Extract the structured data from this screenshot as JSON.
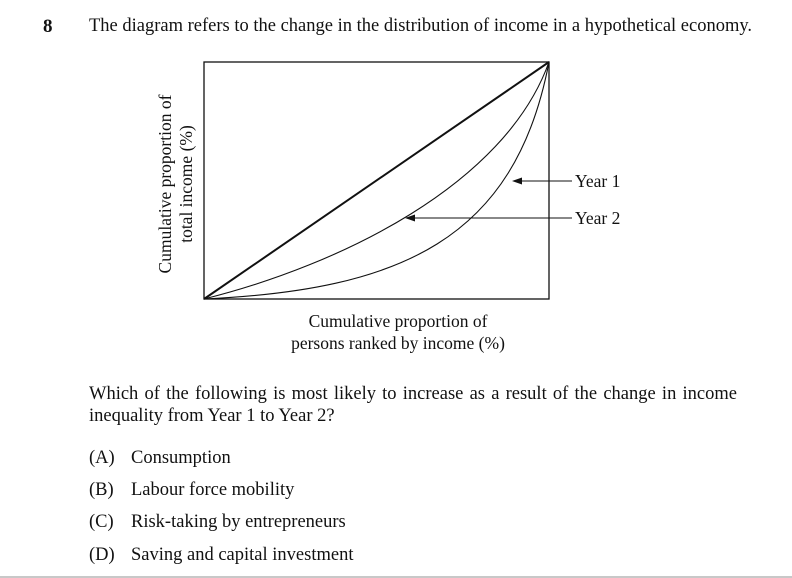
{
  "question": {
    "number": "8",
    "stem": "The diagram refers to the change in the distribution of income in a hypothetical economy.",
    "prompt": "Which of the following is most likely to increase as a result of the change in income inequality from Year 1 to Year 2?",
    "options": [
      {
        "letter": "(A)",
        "text": "Consumption"
      },
      {
        "letter": "(B)",
        "text": "Labour force mobility"
      },
      {
        "letter": "(C)",
        "text": "Risk-taking by entrepreneurs"
      },
      {
        "letter": "(D)",
        "text": "Saving and capital investment"
      }
    ]
  },
  "diagram": {
    "ylabel_line1": "Cumulative proportion of",
    "ylabel_line2": "total income (%)",
    "xlabel_line1": "Cumulative proportion of",
    "xlabel_line2": "persons ranked by income (%)",
    "curve_labels": [
      "Year 1",
      "Year 2"
    ]
  }
}
